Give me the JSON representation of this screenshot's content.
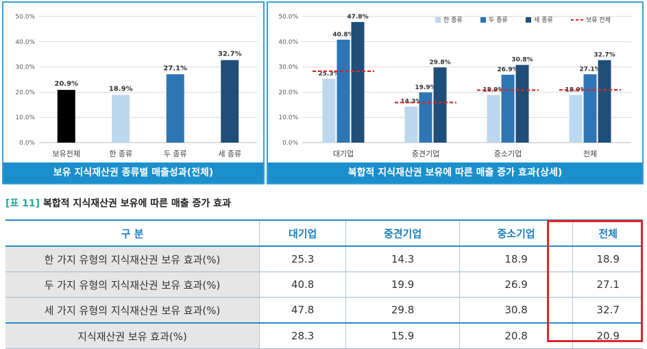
{
  "chart_data": [
    {
      "type": "bar",
      "title": "보유 지식재산권 종류별 매출성과(전체)",
      "categories": [
        "보유전체",
        "한 종류",
        "두 종류",
        "세 종류"
      ],
      "values": [
        20.9,
        18.9,
        27.1,
        32.7
      ],
      "value_labels": [
        "20.9%",
        "18.9%",
        "27.1%",
        "32.7%"
      ],
      "colors": [
        "#000000",
        "#bdd7ee",
        "#2e75b6",
        "#1f4e79"
      ],
      "yticks": [
        "0.0%",
        "10.0%",
        "20.0%",
        "30.0%",
        "40.0%",
        "50.0%"
      ],
      "ylim": [
        0,
        50
      ],
      "grid": true
    },
    {
      "type": "bar",
      "title": "복합적 지식재산권 보유에 따른 매출 증가 효과(상세)",
      "categories": [
        "대기업",
        "중견기업",
        "중소기업",
        "전체"
      ],
      "series": [
        {
          "name": "한 종류",
          "color": "#bdd7ee",
          "values": [
            25.3,
            14.3,
            18.9,
            18.9
          ],
          "labels": [
            "25.3%",
            "14.3%",
            "18.9%",
            "18.9%"
          ]
        },
        {
          "name": "두 종류",
          "color": "#2e75b6",
          "values": [
            40.8,
            19.9,
            26.9,
            27.1
          ],
          "labels": [
            "40.8%",
            "19.9%",
            "26.9%",
            "27.1%"
          ]
        },
        {
          "name": "세 종류",
          "color": "#1f4e79",
          "values": [
            47.8,
            29.8,
            30.8,
            32.7
          ],
          "labels": [
            "47.8%",
            "29.8%",
            "30.8%",
            "32.7%"
          ]
        }
      ],
      "reference_line": {
        "name": "보유 전체",
        "color": "#d62728",
        "values": [
          28.3,
          15.9,
          20.8,
          20.9
        ]
      },
      "yticks": [
        "0.0%",
        "10.0%",
        "20.0%",
        "30.0%",
        "40.0%",
        "50.0%"
      ],
      "ylim": [
        0,
        50
      ],
      "legend_position": "top-right",
      "grid": true
    }
  ],
  "table": {
    "tag": "[표 11]",
    "title": "복합적 지식재산권 보유에 따른 매출 증가 효과",
    "headers": [
      "구  분",
      "대기업",
      "중견기업",
      "중소기업",
      "전체"
    ],
    "rows": [
      [
        "한 가지 유형의 지식재산권 보유 효과(%)",
        "25.3",
        "14.3",
        "18.9",
        "18.9"
      ],
      [
        "두 가지 유형의 지식재산권 보유 효과(%)",
        "40.8",
        "19.9",
        "26.9",
        "27.1"
      ],
      [
        "세 가지 유형의 지식재산권 보유 효과(%)",
        "47.8",
        "29.8",
        "30.8",
        "32.7"
      ],
      [
        "지식재산권 보유 효과(%)",
        "28.3",
        "15.9",
        "20.8",
        "20.9"
      ]
    ]
  }
}
